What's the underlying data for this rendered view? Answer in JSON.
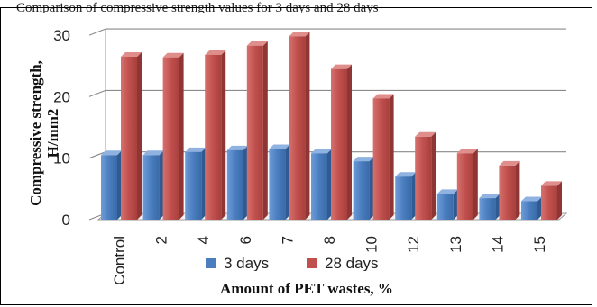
{
  "caption_fragment": "Comparison of compressive strength values for 3 days and 28 days",
  "chart_data": {
    "type": "bar",
    "title": "",
    "xlabel": "Amount of PET wastes, %",
    "ylabel": "Compressive strength, H/mm2",
    "categories": [
      "Control",
      "2",
      "4",
      "6",
      "7",
      "8",
      "10",
      "12",
      "13",
      "14",
      "15"
    ],
    "series": [
      {
        "name": "3 days",
        "color": "#4a7ebf",
        "values": [
          10.5,
          10.5,
          11.0,
          11.3,
          11.5,
          10.8,
          9.5,
          7.0,
          4.2,
          3.5,
          3.0
        ]
      },
      {
        "name": "28 days",
        "color": "#c0504d",
        "values": [
          26.5,
          26.4,
          26.8,
          28.3,
          29.8,
          24.5,
          19.7,
          13.5,
          10.8,
          8.8,
          5.5
        ]
      }
    ],
    "yticks": [
      0,
      10,
      20,
      30
    ],
    "ylim": [
      0,
      30
    ],
    "grid": true,
    "legend_position": "bottom"
  }
}
